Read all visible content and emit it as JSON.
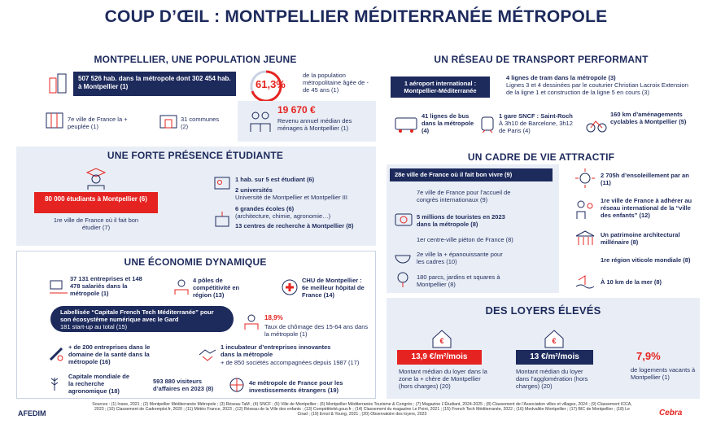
{
  "header": {
    "title": "COUP D’ŒIL : MONTPELLIER MÉDITERRANÉE MÉTROPOLE"
  },
  "population": {
    "title": "MONTPELLIER, UNE POPULATION JEUNE",
    "highlight": "507 526 hab. dans la métropole dont 302 454 hab. à Montpellier (1)",
    "pct_value": "61,3%",
    "pct_text": "de la population métropolitaine âgée de - de 45 ans (1)",
    "rank": "7e ville de France la + peuplée (1)",
    "communes": "31 communes (2)",
    "income_value": "19 670 €",
    "income_text": "Revenu annuel médian des ménages à Montpellier (1)"
  },
  "transport": {
    "title": "UN RÉSEAU DE TRANSPORT PERFORMANT",
    "airport": "1 aéroport international : Montpellier-Méditerranée",
    "tram_title": "4 lignes de tram dans la métropole (3)",
    "tram_text": "Lignes 3 et 4 dessinées par le couturier Christian Lacroix Extension de la ligne 1 et construction de la ligne 5 en cours (3)",
    "bus": "41 lignes de bus dans la métropole (4)",
    "train_title": "1 gare SNCF : Saint-Roch",
    "train_text": "À 3h10 de Barcelone, 3h12 de Paris (4)",
    "bike": "160 km d’aménagements cyclables à Montpellier (5)"
  },
  "students": {
    "title": "UNE FORTE PRÉSENCE ÉTUDIANTE",
    "highlight": "80 000 étudiants à Montpellier (6)",
    "rank": "1re ville de France où il fait bon étudier (7)",
    "items": [
      "1 hab. sur 5 est étudiant (6)",
      "2 universités",
      "Université de Montpellier et Montpellier III",
      "6 grandes écoles (6)",
      "(architecture, chimie, agronomie…)",
      "13 centres de recherche à Montpellier (8)"
    ]
  },
  "economy": {
    "title": "UNE ÉCONOMIE DYNAMIQUE",
    "companies": "37 131 entreprises et 148 478 salariés dans la métropole (1)",
    "poles": "4 pôles de compétitivité en région (13)",
    "chu": "CHU de Montpellier : 6e meilleur hôpital de France (14)",
    "label": "Labellisée “Capitale French Tech Méditerranée” pour son écosystème numérique avec le Gard",
    "startups": "181 start-up au total (15)",
    "unemployment_value": "18,9%",
    "unemployment_text": "Taux de chômage des 15-64 ans dans la métropole (1)",
    "health": "+ de 200 entreprises dans le domaine de la santé dans la métropole (16)",
    "incubator": "1 incubateur d’entreprises innovantes dans la métropole",
    "incubator_text": "+ de 850 sociétés accompagnées depuis 1987 (17)",
    "agro": "Capitale mondiale de la recherche agronomique (18)",
    "visitors": "593 880 visiteurs d’affaires en 2023 (8)",
    "foreign": "4e métropole de France pour les investissements étrangers (19)"
  },
  "lifestyle": {
    "title": "UN CADRE DE VIE ATTRACTIF",
    "highlight": "28e ville de France où il fait bon vivre (9)",
    "left": [
      "7e ville de France pour l’accueil de congrès internationaux (9)",
      "5 millions de touristes en 2023 dans la métropole (8)",
      "1er centre-ville piéton de France (8)",
      "2e ville la + épanouissante pour les cadres (10)",
      "180 parcs, jardins et squares à Montpellier (8)"
    ],
    "right": [
      "2 705h d’ensoleillement par an (11)",
      "1re ville de France à adhérer au réseau international de la “ville des enfants” (12)",
      "Un patrimoine architectural millénaire (8)",
      "1re région viticole mondiale (8)",
      "À 10 km de la mer (8)"
    ]
  },
  "rents": {
    "title": "DES LOYERS ÉLEVÉS",
    "items": [
      {
        "value": "13,9 €/m²/mois",
        "text": "Montant médian du loyer dans la zone la + chère de Montpellier (hors charges) (20)"
      },
      {
        "value": "13 €/m²/mois",
        "text": "Montant médian du loyer dans l’agglomération (hors charges) (20)"
      },
      {
        "value": "7,9%",
        "text": "de logements vacants à Montpellier (1)"
      }
    ]
  },
  "footer": {
    "sources": "Sources : (1) Insee, 2021 ; (2) Montpellier Méditerranée Métropole ; (3) Réseau TaM ; (4) SNCF ; (5) Ville de Montpellier ; (6) Montpellier Méditerranée Tourisme & Congrès ; (7) Magazine L’Étudiant, 2024-2025 ; (8) Classement de l’Association villes et villages, 2024 ; (9) Classement ICCA, 2023 ; (10) Classement de Cadremploi.fr, 2020 ; (11) Météo France, 2023 ; (12) Réseau de la Ville des enfants ; (13) Compétitivité.gouv.fr ; (14) Classement du magazine Le Point, 2021 ; (15) French Tech Méditerranée, 2022 ; (16) Medvallée Montpellier ; (17) BIC de Montpellier ; (18) Le Cirad ; (19) Ernst & Young, 2021 ; (20) Observatoire des loyers, 2023",
    "logo_left": "AFEDIM",
    "logo_right": "Cebra"
  }
}
